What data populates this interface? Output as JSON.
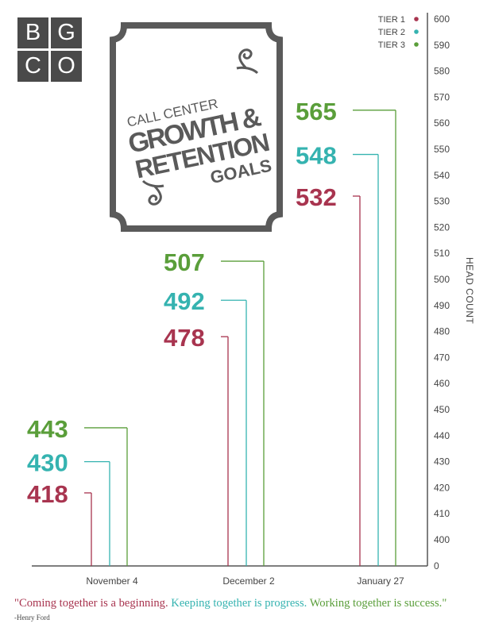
{
  "logo": {
    "letters": [
      "B",
      "G",
      "C",
      "O"
    ]
  },
  "title": {
    "line1": "CALL CENTER",
    "line2": "GROWTH &",
    "line3": "RETENTION",
    "line4": "GOALS"
  },
  "quote": {
    "part1": "\"Coming together is a beginning.",
    "part2": "Keeping together is progress.",
    "part3": "Working together is success.\"",
    "author": "-Henry Ford"
  },
  "colors": {
    "tier1": "#a8344f",
    "tier2": "#35b3b0",
    "tier3": "#5a9e3a",
    "axis": "#555555"
  },
  "chart_data": {
    "type": "bar",
    "categories": [
      "November 4",
      "December 2",
      "January 27"
    ],
    "series": [
      {
        "name": "TIER 1",
        "values": [
          418,
          478,
          532
        ]
      },
      {
        "name": "TIER 2",
        "values": [
          430,
          492,
          548
        ]
      },
      {
        "name": "TIER 3",
        "values": [
          443,
          507,
          565
        ]
      }
    ],
    "ylabel": "HEAD COUNT",
    "yticks": [
      "0",
      "400",
      "410",
      "420",
      "430",
      "440",
      "450",
      "460",
      "470",
      "480",
      "490",
      "500",
      "510",
      "520",
      "530",
      "540",
      "550",
      "560",
      "570",
      "580",
      "590",
      "600"
    ],
    "ylim": [
      390,
      600
    ],
    "axis_break": true,
    "legend_position": "top-right",
    "grid": false
  }
}
